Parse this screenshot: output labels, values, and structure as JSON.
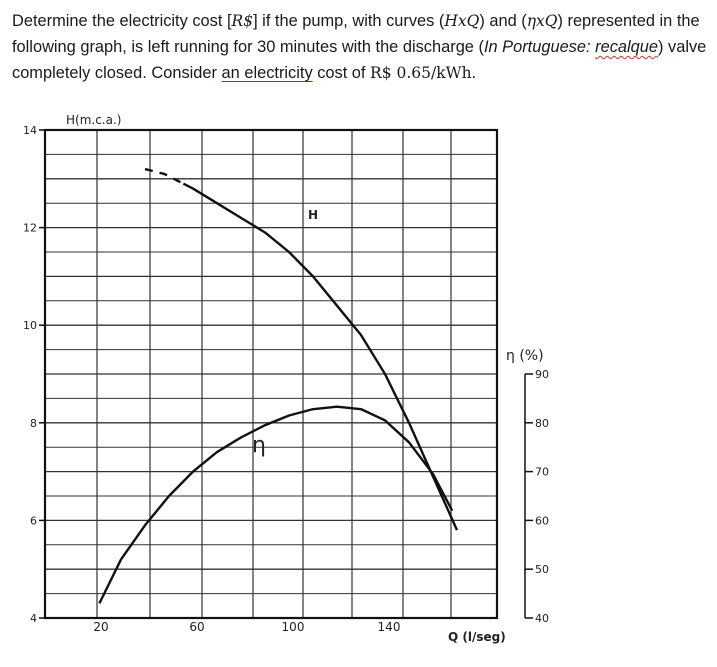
{
  "question": {
    "p1": "Determine the electricity cost [",
    "unit_brl": "R$",
    "p2": "] if the pump, with curves (",
    "curve_h": "HxQ",
    "p3": ") and (",
    "curve_eta": "ηxQ",
    "p4": ") represented in the following graph, is left running for 30 minutes with the discharge (",
    "portuguese_note": "In Portuguese:",
    "recalque": "recalque",
    "p5": ") valve completely closed. Consider ",
    "underlined": "an electricity",
    "p6": " cost of ",
    "price": "R$ 0.65/kWh",
    "p7": "."
  },
  "graph": {
    "y_axis_label": "H(m.c.a.)",
    "x_axis_label": "Q (l/seg)",
    "eta_axis_label": "η (%)",
    "h_curve_label": "H",
    "eta_curve_label": "η",
    "h_ticks": [
      "14",
      "12",
      "10",
      "8",
      "6",
      "4"
    ],
    "q_ticks": [
      "20",
      "60",
      "100",
      "140"
    ],
    "eta_ticks": [
      "90",
      "80",
      "70",
      "60",
      "50",
      "40"
    ]
  },
  "chart_data": {
    "type": "line",
    "xlabel": "Q (l/seg)",
    "ylabel": "H(m.c.a.)",
    "y2label": "η (%)",
    "xlim": [
      0,
      190
    ],
    "ylim": [
      4,
      14
    ],
    "y2lim": [
      40,
      90
    ],
    "x_ticks": [
      20,
      60,
      100,
      140
    ],
    "y_ticks": [
      4,
      6,
      8,
      10,
      12,
      14
    ],
    "y2_ticks": [
      40,
      50,
      60,
      70,
      80,
      90
    ],
    "grid": true,
    "series": [
      {
        "name": "H",
        "axis": "left",
        "x": [
          40,
          48,
          56,
          60,
          70,
          80,
          90,
          100,
          110,
          120,
          130,
          140,
          150,
          160,
          170
        ],
        "y": [
          13.2,
          13.1,
          12.9,
          12.8,
          12.5,
          12.2,
          11.9,
          11.5,
          11.0,
          10.4,
          9.8,
          9.0,
          8.0,
          6.9,
          5.8
        ],
        "dashed_until_x": 56
      },
      {
        "name": "η",
        "axis": "right",
        "x": [
          21,
          30,
          40,
          50,
          60,
          70,
          80,
          90,
          100,
          110,
          120,
          130,
          140,
          150,
          160,
          168
        ],
        "y": [
          43,
          52,
          59,
          65,
          70,
          74,
          77,
          79.5,
          81.5,
          82.8,
          83.3,
          82.8,
          80.5,
          76,
          69.5,
          62
        ]
      }
    ]
  }
}
